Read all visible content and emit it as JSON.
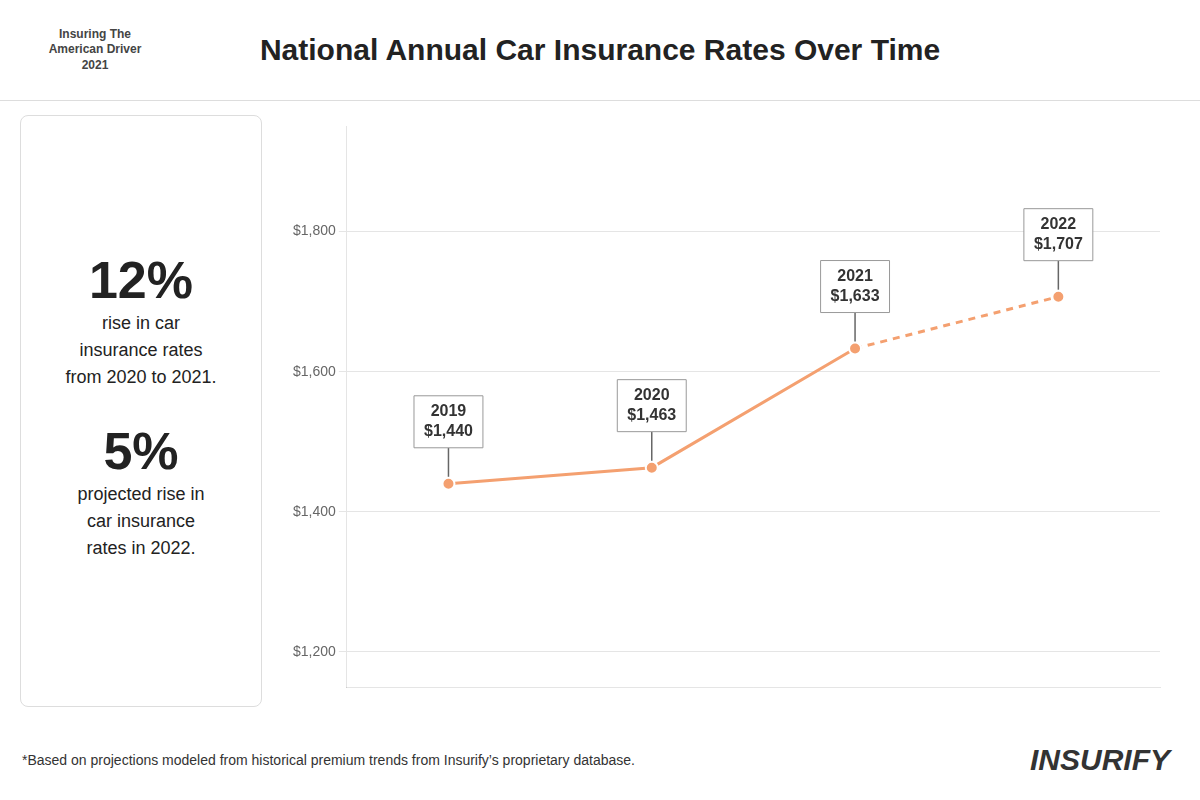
{
  "chart_data": {
    "type": "line",
    "title": "National Annual Car Insurance Rates Over Time",
    "annotations": [
      "Insuring The\nAmerican Driver\n2021",
      "12%",
      "rise in car\ninsurance rates\nfrom 2020 to 2021.",
      "5%",
      "projected rise in\ncar insurance\nrates in 2022.",
      "*Based on projections modeled from historical premium trends from Insurify’s proprietary database.",
      "INSURIFY"
    ],
    "categories": [
      "2019",
      "2020",
      "2021",
      "2022"
    ],
    "series": [
      {
        "values": [
          1440,
          1463,
          1633,
          null
        ],
        "color": "#F4A070",
        "line_style": "solid",
        "marker": "o",
        "value_labels": [
          "2019\n$1,440",
          "2020\n$1,463",
          "2021\n$1,633",
          null
        ]
      },
      {
        "values": [
          null,
          null,
          1633,
          1707
        ],
        "color": "#F4A070",
        "line_style": "dashed",
        "marker": "o",
        "value_labels": [
          null,
          null,
          null,
          "2022\n$1,707"
        ]
      }
    ],
    "ylim": [
      1150,
      1950
    ],
    "yticks": [
      {
        "value": 1200,
        "label": "$1,200"
      },
      {
        "value": 1400,
        "label": "$1,400"
      },
      {
        "value": 1600,
        "label": "$1,600"
      },
      {
        "value": 1800,
        "label": "$1,800"
      }
    ],
    "grid": true,
    "data_labels": true,
    "tick_labels": "y"
  }
}
